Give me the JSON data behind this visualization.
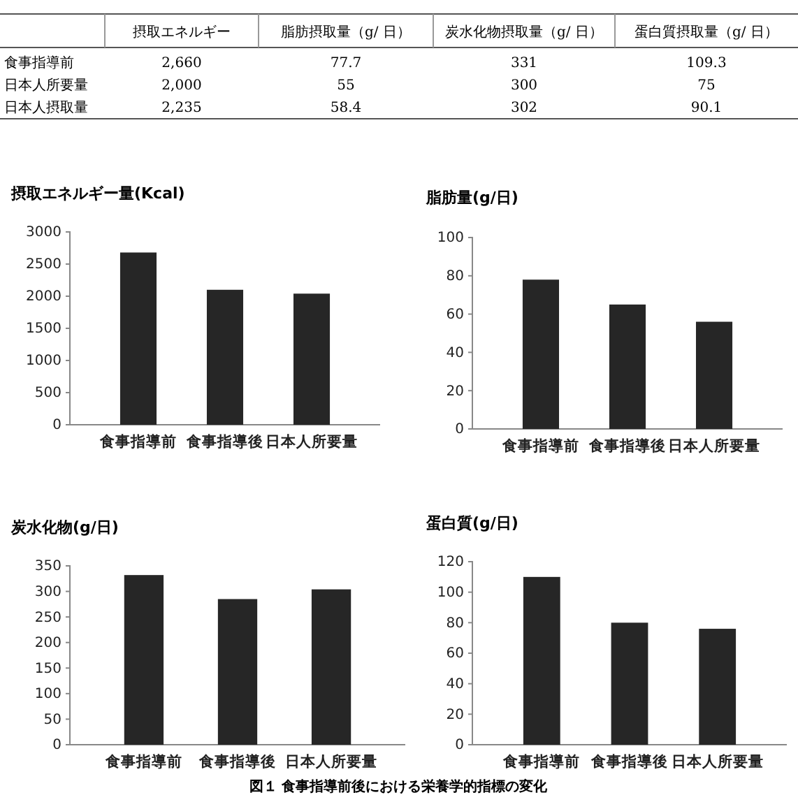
{
  "chart_data": [
    {
      "type": "other",
      "categories": [
        "摂取エネルギー",
        "脂肪摂取量（g/ 日）",
        "炭水化物摂取量（g/ 日）",
        "蛋白質摂取量（g/ 日）"
      ],
      "y_categories": [
        "食事指導前",
        "日本人所要量",
        "日本人摂取量"
      ],
      "cell_labels": [
        [
          "2,660",
          "77.7",
          "331",
          "109.3"
        ],
        [
          "2,000",
          "55",
          "300",
          "75"
        ],
        [
          "2,235",
          "58.4",
          "302",
          "90.1"
        ]
      ]
    },
    {
      "type": "bar",
      "title": "摂取エネルギー量(Kcal)",
      "categories": [
        "食事指導前",
        "食事指導後",
        "日本人所要量"
      ],
      "values": [
        2680,
        2100,
        2040
      ],
      "color": "#262626",
      "ylim": [
        0,
        3000
      ],
      "yticks": [
        0,
        500,
        1000,
        1500,
        2000,
        2500,
        3000
      ]
    },
    {
      "type": "bar",
      "title": "脂肪量(g/日)",
      "categories": [
        "食事指導前",
        "食事指導後",
        "日本人所要量"
      ],
      "values": [
        78,
        65,
        56
      ],
      "color": "#262626",
      "ylim": [
        0,
        100
      ],
      "yticks": [
        0,
        20,
        40,
        60,
        80,
        100
      ]
    },
    {
      "type": "bar",
      "title": "炭水化物(g/日)",
      "categories": [
        "食事指導前",
        "食事指導後",
        "日本人所要量"
      ],
      "values": [
        332,
        285,
        304
      ],
      "color": "#262626",
      "ylim": [
        0,
        350
      ],
      "yticks": [
        0,
        50,
        100,
        150,
        200,
        250,
        300,
        350
      ]
    },
    {
      "type": "bar",
      "title": "蛋白質(g/日)",
      "categories": [
        "食事指導前",
        "食事指導後",
        "日本人所要量"
      ],
      "values": [
        110,
        80,
        76
      ],
      "color": "#262626",
      "ylim": [
        0,
        120
      ],
      "yticks": [
        0,
        20,
        40,
        60,
        80,
        100,
        120
      ],
      "annotations": [
        "図１ 食事指導前後における栄養学的指標の変化"
      ]
    }
  ]
}
